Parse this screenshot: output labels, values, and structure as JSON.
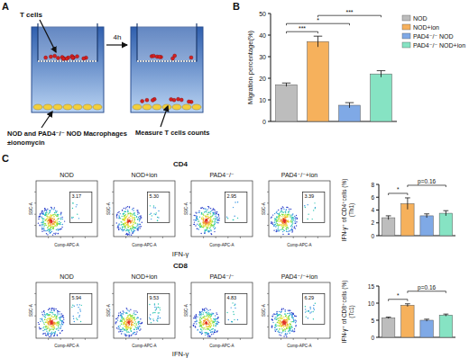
{
  "panel_labels": [
    "A",
    "B",
    "C"
  ],
  "diagram": {
    "cells_label": "T cells",
    "macrophage_label": "NOD and PAD4⁻/⁻ NOD Macrophages",
    "treatment_label": "±ionomycin",
    "time_label": "4h",
    "measure_label": "Measure T cells counts"
  },
  "flow": {
    "x_label": "IFN-γ",
    "x_axis_label": "Comp-APC-A",
    "y_axis_label": "SSC-A",
    "rows": [
      {
        "title": "CD4",
        "plots": [
          {
            "title": "NOD",
            "gate": "3.17"
          },
          {
            "title": "NOD+ion",
            "gate": "5.30"
          },
          {
            "title": "PAD4⁻/⁻",
            "gate": "2.95"
          },
          {
            "title": "PAD4⁻/⁻+ion",
            "gate": "3.39"
          }
        ]
      },
      {
        "title": "CD8",
        "plots": [
          {
            "title": "NOD",
            "gate": "5.94"
          },
          {
            "title": "NOD+ion",
            "gate": "9.53"
          },
          {
            "title": "PAD4⁻/⁻",
            "gate": "4.83"
          },
          {
            "title": "PAD4⁻/⁻+ion",
            "gate": "6.29"
          }
        ]
      }
    ]
  },
  "chart_data": [
    {
      "type": "bar",
      "y_label": "Migration percentage(%)",
      "categories": [
        "NOD",
        "NOD+ion",
        "PAD4⁻/⁻ NOD",
        "PAD4⁻/⁻ NOD+ion"
      ],
      "values": [
        17,
        37,
        7.5,
        22
      ],
      "errors": [
        0.8,
        2.5,
        1.2,
        1.5
      ],
      "colors": [
        "#bdbdbd",
        "#f6b15c",
        "#7fa9e6",
        "#86e3c3"
      ],
      "ylim": [
        0,
        50
      ],
      "yticks": [
        0,
        10,
        20,
        30,
        40,
        50
      ],
      "legend": "top-right",
      "tick_labels": "y",
      "annotations": [
        {
          "text": "***",
          "between": [
            0,
            1
          ]
        },
        {
          "text": "*",
          "between": [
            0,
            2
          ]
        },
        {
          "text": "***",
          "between": [
            1,
            3
          ]
        }
      ]
    },
    {
      "type": "bar",
      "y_label": "IFN-γ⁺ of CD4⁺cells (%)",
      "y_label_2": "(Th1)",
      "categories": [
        null,
        null,
        null,
        null
      ],
      "values": [
        2.8,
        5.0,
        3.1,
        3.5
      ],
      "errors": [
        0.3,
        0.9,
        0.3,
        0.4
      ],
      "colors": [
        "#bdbdbd",
        "#f6b15c",
        "#7fa9e6",
        "#86e3c3"
      ],
      "ylim": [
        0,
        8
      ],
      "yticks": [
        0,
        2,
        4,
        6,
        8
      ],
      "tick_labels": "y",
      "annotations": [
        {
          "text": "*",
          "between": [
            0,
            1
          ]
        },
        {
          "text": "p=0.16",
          "between": [
            1,
            3
          ]
        }
      ]
    },
    {
      "type": "bar",
      "y_label": "IFN-γ⁺ of CD8⁺cells (%)",
      "y_label_2": "(Tc1)",
      "categories": [
        null,
        null,
        null,
        null
      ],
      "values": [
        5.7,
        9.4,
        5.0,
        6.5
      ],
      "errors": [
        0.2,
        0.4,
        0.3,
        0.3
      ],
      "colors": [
        "#bdbdbd",
        "#f6b15c",
        "#7fa9e6",
        "#86e3c3"
      ],
      "ylim": [
        0,
        15
      ],
      "yticks": [
        0,
        5,
        10,
        15
      ],
      "tick_labels": "y",
      "annotations": [
        {
          "text": "*",
          "between": [
            0,
            1
          ]
        },
        {
          "text": "p=0.16",
          "between": [
            1,
            3
          ]
        }
      ]
    }
  ]
}
